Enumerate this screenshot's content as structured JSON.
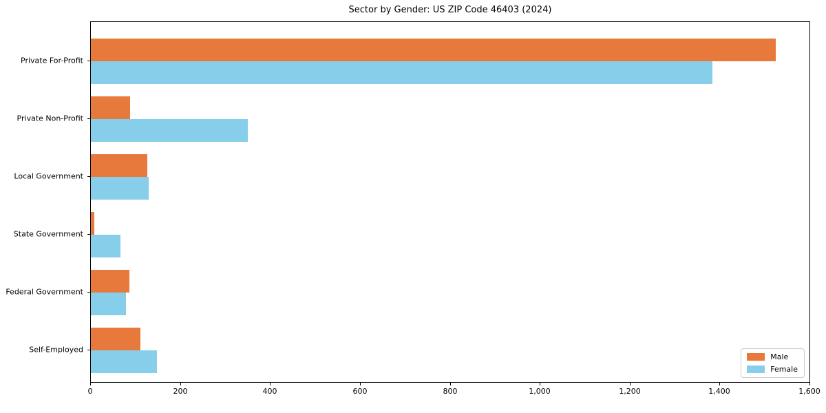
{
  "chart_data": {
    "type": "bar",
    "orientation": "horizontal",
    "title": "Sector by Gender: US ZIP Code 46403 (2024)",
    "categories": [
      "Private For-Profit",
      "Private Non-Profit",
      "Local Government",
      "State Government",
      "Federal Government",
      "Self-Employed"
    ],
    "series": [
      {
        "name": "Male",
        "color": "#e8793c",
        "values": [
          1522,
          87,
          125,
          8,
          86,
          110
        ]
      },
      {
        "name": "Female",
        "color": "#87ceeb",
        "values": [
          1381,
          349,
          128,
          66,
          78,
          147
        ]
      }
    ],
    "xlim": [
      0,
      1600
    ],
    "x_ticks": [
      0,
      200,
      400,
      600,
      800,
      1000,
      1200,
      1400,
      1600
    ],
    "x_tick_labels": [
      "0",
      "200",
      "400",
      "600",
      "800",
      "1,000",
      "1,200",
      "1,400",
      "1,600"
    ],
    "legend_position": "lower right",
    "grid": false,
    "axis_color": "#000000",
    "background_color": "#ffffff"
  }
}
